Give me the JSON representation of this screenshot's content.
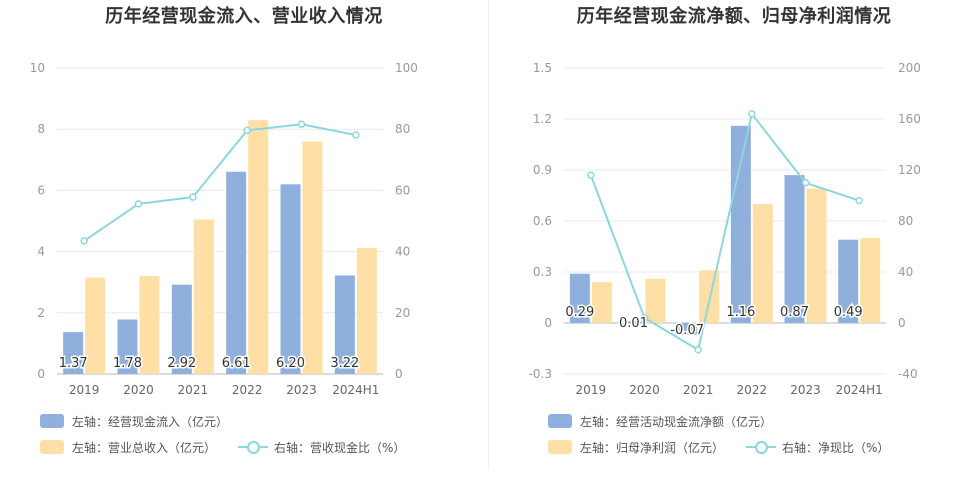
{
  "colors": {
    "bar_primary": "#8fafdc",
    "bar_secondary": "#ffdfa6",
    "line": "#8ed6dd"
  },
  "left": {
    "title": "历年经营现金流入、营业收入情况",
    "legend": {
      "bar1": "左轴：经营现金流入（亿元）",
      "bar2": "左轴：营业总收入（亿元）",
      "line": "右轴：营收现金比（%）"
    }
  },
  "right": {
    "title": "历年经营现金流净额、归母净利润情况",
    "legend": {
      "bar1": "左轴：经营活动现金流净额（亿元）",
      "bar2": "左轴：归母净利润（亿元）",
      "line": "右轴：净现比（%）"
    }
  },
  "chart_data": [
    {
      "type": "bar",
      "title": "历年经营现金流入、营业收入情况",
      "categories": [
        "2019",
        "2020",
        "2021",
        "2022",
        "2023",
        "2024H1"
      ],
      "ylim": [
        0,
        10
      ],
      "y2lim": [
        0,
        100
      ],
      "yticks": [
        "0",
        "2",
        "4",
        "6",
        "8",
        "10"
      ],
      "y2ticks": [
        "0",
        "20",
        "40",
        "60",
        "80",
        "100"
      ],
      "series": [
        {
          "name": "左轴：经营现金流入（亿元）",
          "axis": "left",
          "kind": "bar",
          "values": [
            1.37,
            1.78,
            2.92,
            6.61,
            6.2,
            3.22
          ],
          "labels": [
            "1.37",
            "1.78",
            "2.92",
            "6.61",
            "6.20",
            "3.22"
          ]
        },
        {
          "name": "左轴：营业总收入（亿元）",
          "axis": "left",
          "kind": "bar",
          "values": [
            3.15,
            3.2,
            5.05,
            8.3,
            7.6,
            4.12
          ]
        },
        {
          "name": "右轴：营收现金比（%）",
          "axis": "right",
          "kind": "line",
          "values": [
            43.5,
            55.6,
            57.8,
            79.6,
            81.6,
            78.1
          ]
        }
      ]
    },
    {
      "type": "bar",
      "title": "历年经营现金流净额、归母净利润情况",
      "categories": [
        "2019",
        "2020",
        "2021",
        "2022",
        "2023",
        "2024H1"
      ],
      "ylim": [
        -0.3,
        1.5
      ],
      "y2lim": [
        -40,
        200
      ],
      "yticks": [
        "-0.3",
        "0",
        "0.3",
        "0.6",
        "0.9",
        "1.2",
        "1.5"
      ],
      "y2ticks": [
        "-40",
        "0",
        "40",
        "80",
        "120",
        "160",
        "200"
      ],
      "series": [
        {
          "name": "左轴：经营活动现金流净额（亿元）",
          "axis": "left",
          "kind": "bar",
          "values": [
            0.29,
            0.01,
            -0.07,
            1.16,
            0.87,
            0.49
          ],
          "labels": [
            "0.29",
            "0.01",
            "-0.07",
            "1.16",
            "0.87",
            "0.49"
          ]
        },
        {
          "name": "左轴：归母净利润（亿元）",
          "axis": "left",
          "kind": "bar",
          "values": [
            0.24,
            0.26,
            0.31,
            0.7,
            0.79,
            0.5
          ]
        },
        {
          "name": "右轴：净现比（%）",
          "axis": "right",
          "kind": "line",
          "values": [
            116,
            4,
            -21,
            164,
            110,
            96
          ]
        }
      ]
    }
  ]
}
